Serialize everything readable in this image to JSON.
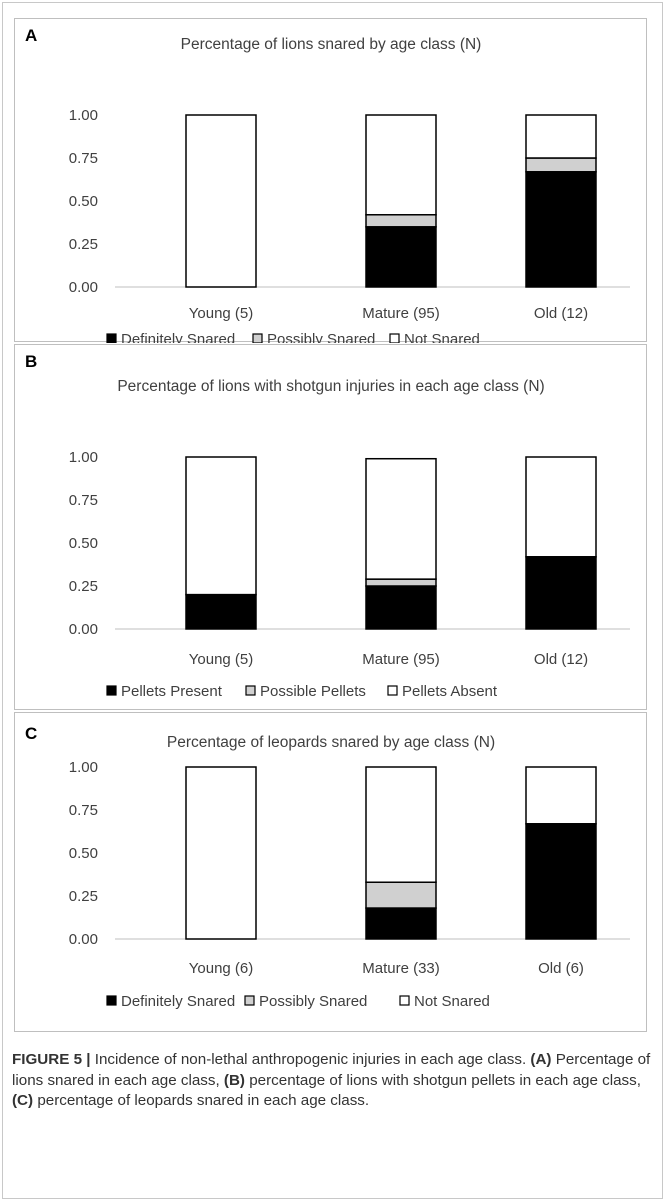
{
  "chart_data": [
    {
      "type": "bar",
      "stacked": true,
      "panel_label": "A",
      "title": "Percentage of lions snared by age class (N)",
      "categories": [
        "Young (5)",
        "Mature (95)",
        "Old (12)"
      ],
      "series": [
        {
          "name": "Definitely Snared",
          "values": [
            0,
            0.35,
            0.67
          ],
          "color": "#000000"
        },
        {
          "name": "Possibly Snared",
          "values": [
            0,
            0.07,
            0.08
          ],
          "color": "#d0d0d0"
        },
        {
          "name": "Not Snared",
          "values": [
            1.0,
            0.58,
            0.25
          ],
          "color": "#ffffff"
        }
      ],
      "yticks": [
        "0.00",
        "0.25",
        "0.50",
        "0.75",
        "1.00"
      ],
      "ylim": [
        0,
        1
      ],
      "grid": false,
      "legend": "bottom"
    },
    {
      "type": "bar",
      "stacked": true,
      "panel_label": "B",
      "title": "Percentage of lions with shotgun injuries in each age class (N)",
      "categories": [
        "Young (5)",
        "Mature (95)",
        "Old (12)"
      ],
      "series": [
        {
          "name": "Pellets Present",
          "values": [
            0.2,
            0.25,
            0.42
          ],
          "color": "#000000"
        },
        {
          "name": "Possible Pellets",
          "values": [
            0,
            0.04,
            0
          ],
          "color": "#d0d0d0"
        },
        {
          "name": "Pellets Absent",
          "values": [
            0.8,
            0.7,
            0.58
          ],
          "color": "#ffffff"
        }
      ],
      "yticks": [
        "0.00",
        "0.25",
        "0.50",
        "0.75",
        "1.00"
      ],
      "ylim": [
        0,
        1
      ],
      "grid": false,
      "legend": "bottom"
    },
    {
      "type": "bar",
      "stacked": true,
      "panel_label": "C",
      "title": "Percentage of leopards snared by age class (N)",
      "categories": [
        "Young (6)",
        "Mature (33)",
        "Old (6)"
      ],
      "series": [
        {
          "name": "Definitely Snared",
          "values": [
            0,
            0.18,
            0.67
          ],
          "color": "#000000"
        },
        {
          "name": "Possibly Snared",
          "values": [
            0,
            0.15,
            0
          ],
          "color": "#d0d0d0"
        },
        {
          "name": "Not Snared",
          "values": [
            1.0,
            0.67,
            0.33
          ],
          "color": "#ffffff"
        }
      ],
      "yticks": [
        "0.00",
        "0.25",
        "0.50",
        "0.75",
        "1.00"
      ],
      "ylim": [
        0,
        1
      ],
      "grid": false,
      "legend": "bottom"
    }
  ],
  "caption": {
    "figure_label": "FIGURE 5 |",
    "intro": " Incidence of non-lethal anthropogenic injuries in each age class. ",
    "label_a": "(A)",
    "text_a": " Percentage of lions snared in each age class, ",
    "label_b": "(B)",
    "text_b": " percentage of lions with shotgun pellets in each age class, ",
    "label_c": "(C)",
    "text_c": " percentage of leopards snared in each age class."
  }
}
